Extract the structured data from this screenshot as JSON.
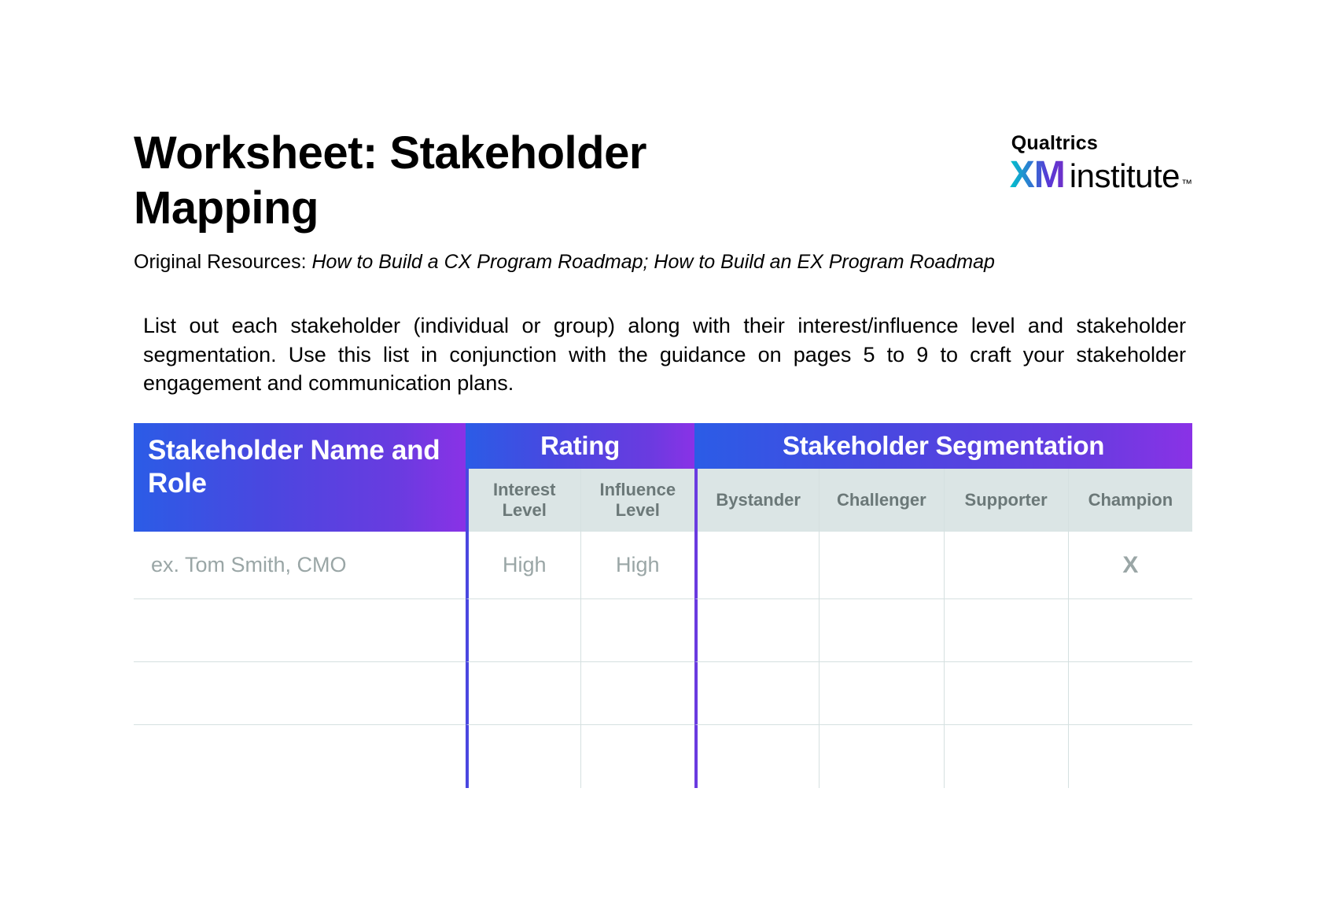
{
  "header": {
    "title": "Worksheet: Stakeholder Mapping",
    "logo_company": "Qualtrics",
    "logo_xm": "XM",
    "logo_institute": "institute",
    "logo_tm": "™",
    "subtitle_label": "Original Resources: ",
    "subtitle_resources": "How to Build a CX Program Roadmap; How to Build an EX Program Roadmap"
  },
  "intro": "List out each stakeholder (individual or group) along with their interest/influence level and stakeholder segmentation. Use this list in conjunction with the guidance on pages 5 to 9 to craft your stakeholder engagement and communication plans.",
  "table": {
    "columns": {
      "name": "Stakeholder Name and Role",
      "rating": "Rating",
      "segmentation": "Stakeholder Segmentation",
      "interest": "Interest Level",
      "influence": "Influence Level",
      "bystander": "Bystander",
      "challenger": "Challenger",
      "supporter": "Supporter",
      "champion": "Champion"
    },
    "rows": [
      {
        "name": "ex. Tom Smith, CMO",
        "interest": "High",
        "influence": "High",
        "bystander": "",
        "challenger": "",
        "supporter": "",
        "champion": "X"
      },
      {
        "name": "",
        "interest": "",
        "influence": "",
        "bystander": "",
        "challenger": "",
        "supporter": "",
        "champion": ""
      },
      {
        "name": "",
        "interest": "",
        "influence": "",
        "bystander": "",
        "challenger": "",
        "supporter": "",
        "champion": ""
      },
      {
        "name": "",
        "interest": "",
        "influence": "",
        "bystander": "",
        "challenger": "",
        "supporter": "",
        "champion": ""
      }
    ],
    "colors": {
      "gradient_start": "#2b5ce6",
      "gradient_end": "#8a32e6",
      "subheader_bg": "#dbe5e5",
      "subheader_text": "#6b7878",
      "placeholder_text": "#9aa6a6",
      "border": "#d5e0e0",
      "vsep_rating": "#4a47e0",
      "vsep_seg": "#6a3be0"
    }
  }
}
